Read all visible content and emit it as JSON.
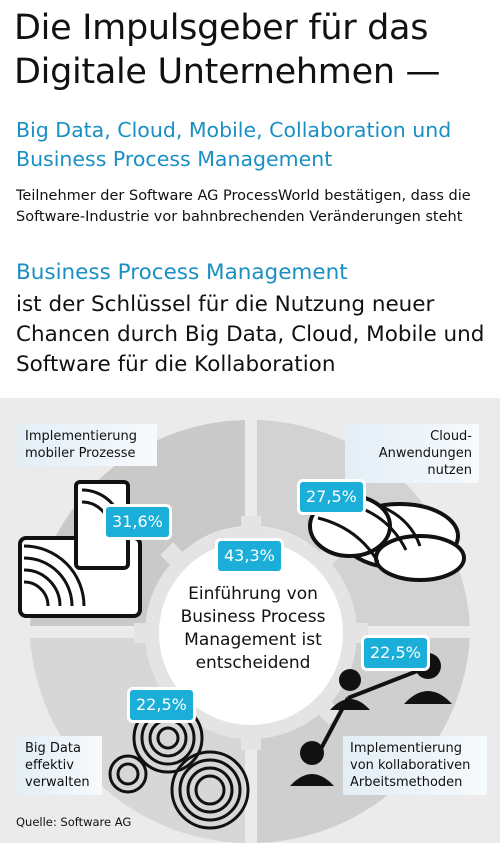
{
  "title": "Die Impulsgeber für das Digitale Unternehmen —",
  "subtitle": "Big Data, Cloud, Mobile, Collaboration und Business Process Management",
  "intro": "Teilnehmer der Software AG ProcessWorld bestätigen, dass die Software-Industrie vor bahnbrechenden Veränderungen steht",
  "bpm_heading": "Business Process Management",
  "claim": "ist der Schlüssel für die Nutzung neuer Chancen durch Big Data, Cloud, Mobile und Software für die Kollaboration",
  "segments": {
    "mobile": {
      "label": "Implementierung mobiler Prozesse",
      "value": "31,6%"
    },
    "cloud": {
      "label": "Cloud-Anwendungen nutzen",
      "value": "27,5%"
    },
    "bigdata": {
      "label": "Big Data effektiv verwalten",
      "value": "22,5%"
    },
    "collab": {
      "label": "Implementierung von kollaborativen Arbeitsmethoden",
      "value": "22,5%"
    },
    "center": {
      "label": "Einführung von Business Process Management ist entscheidend",
      "value": "43,3%"
    }
  },
  "source": "Quelle: Software AG",
  "colors": {
    "accent": "#1a8fc4",
    "badge": "#1aaed8",
    "panel": "#ebebeb"
  }
}
